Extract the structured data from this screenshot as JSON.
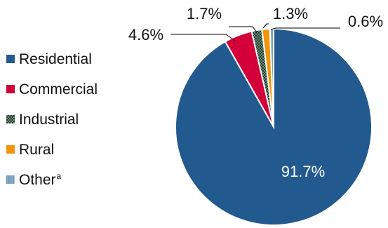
{
  "chart_data": {
    "type": "pie",
    "title": "",
    "legend_position": "left",
    "slices": [
      {
        "label": "Residential",
        "value": 91.7,
        "display": "91.7%",
        "color": "#22598f",
        "pattern": "solid"
      },
      {
        "label": "Commercial",
        "value": 4.6,
        "display": "4.6%",
        "color": "#d4003a",
        "pattern": "solid"
      },
      {
        "label": "Industrial",
        "value": 1.7,
        "display": "1.7%",
        "color": "#2d4a3a",
        "pattern": "checker"
      },
      {
        "label": "Rural",
        "value": 1.3,
        "display": "1.3%",
        "color": "#f0960e",
        "pattern": "solid"
      },
      {
        "label": "Other",
        "value": 0.6,
        "display": "0.6%",
        "color": "#7fa8c2",
        "pattern": "striped",
        "superscript": "a"
      }
    ]
  }
}
